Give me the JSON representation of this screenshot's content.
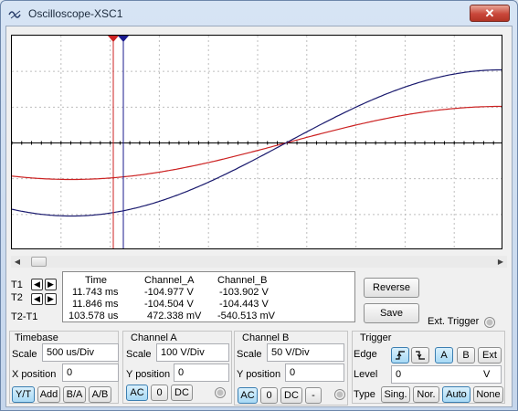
{
  "window": {
    "title": "Oscilloscope-XSC1",
    "close_label": "✕"
  },
  "readout": {
    "headers": [
      "Time",
      "Channel_A",
      "Channel_B"
    ],
    "rows": [
      {
        "label": "T1",
        "time": "11.743 ms",
        "a": "-104.977 V",
        "b": "-103.902 V"
      },
      {
        "label": "T2",
        "time": "11.846 ms",
        "a": "-104.504 V",
        "b": "-104.443 V"
      },
      {
        "label": "T2-T1",
        "time": "103.578 us",
        "a": "472.338 mV",
        "b": "-540.513 mV"
      }
    ]
  },
  "buttons": {
    "reverse": "Reverse",
    "save": "Save",
    "ext_trigger": "Ext. Trigger"
  },
  "timebase": {
    "title": "Timebase",
    "scale_label": "Scale",
    "scale_value": "500 us/Div",
    "xpos_label": "X position",
    "xpos_value": "0",
    "modes": [
      "Y/T",
      "Add",
      "B/A",
      "A/B"
    ]
  },
  "channel_a": {
    "title": "Channel A",
    "scale_label": "Scale",
    "scale_value": "100  V/Div",
    "ypos_label": "Y position",
    "ypos_value": "0",
    "coupling": [
      "AC",
      "0",
      "DC"
    ]
  },
  "channel_b": {
    "title": "Channel B",
    "scale_label": "Scale",
    "scale_value": "50  V/Div",
    "ypos_label": "Y position",
    "ypos_value": "0",
    "coupling": [
      "AC",
      "0",
      "DC",
      "-"
    ]
  },
  "trigger": {
    "title": "Trigger",
    "edge_label": "Edge",
    "sources": [
      "A",
      "B",
      "Ext"
    ],
    "level_label": "Level",
    "level_value": "0",
    "level_unit": "V",
    "type_label": "Type",
    "types": [
      "Sing.",
      "Nor.",
      "Auto",
      "None"
    ]
  },
  "colors": {
    "channel_a": "#cc2222",
    "channel_b": "#1a1a6e",
    "cursor_t1": "#cc2222",
    "cursor_t2": "#1a1a8e",
    "active_button": "#a7d9f5"
  },
  "icons": {
    "title": "oscilloscope-wave-icon",
    "close": "close-icon",
    "cursor_left": "arrow-left-icon",
    "cursor_right": "arrow-right-icon",
    "edge_rising": "rising-edge-icon",
    "edge_falling": "falling-edge-icon"
  }
}
